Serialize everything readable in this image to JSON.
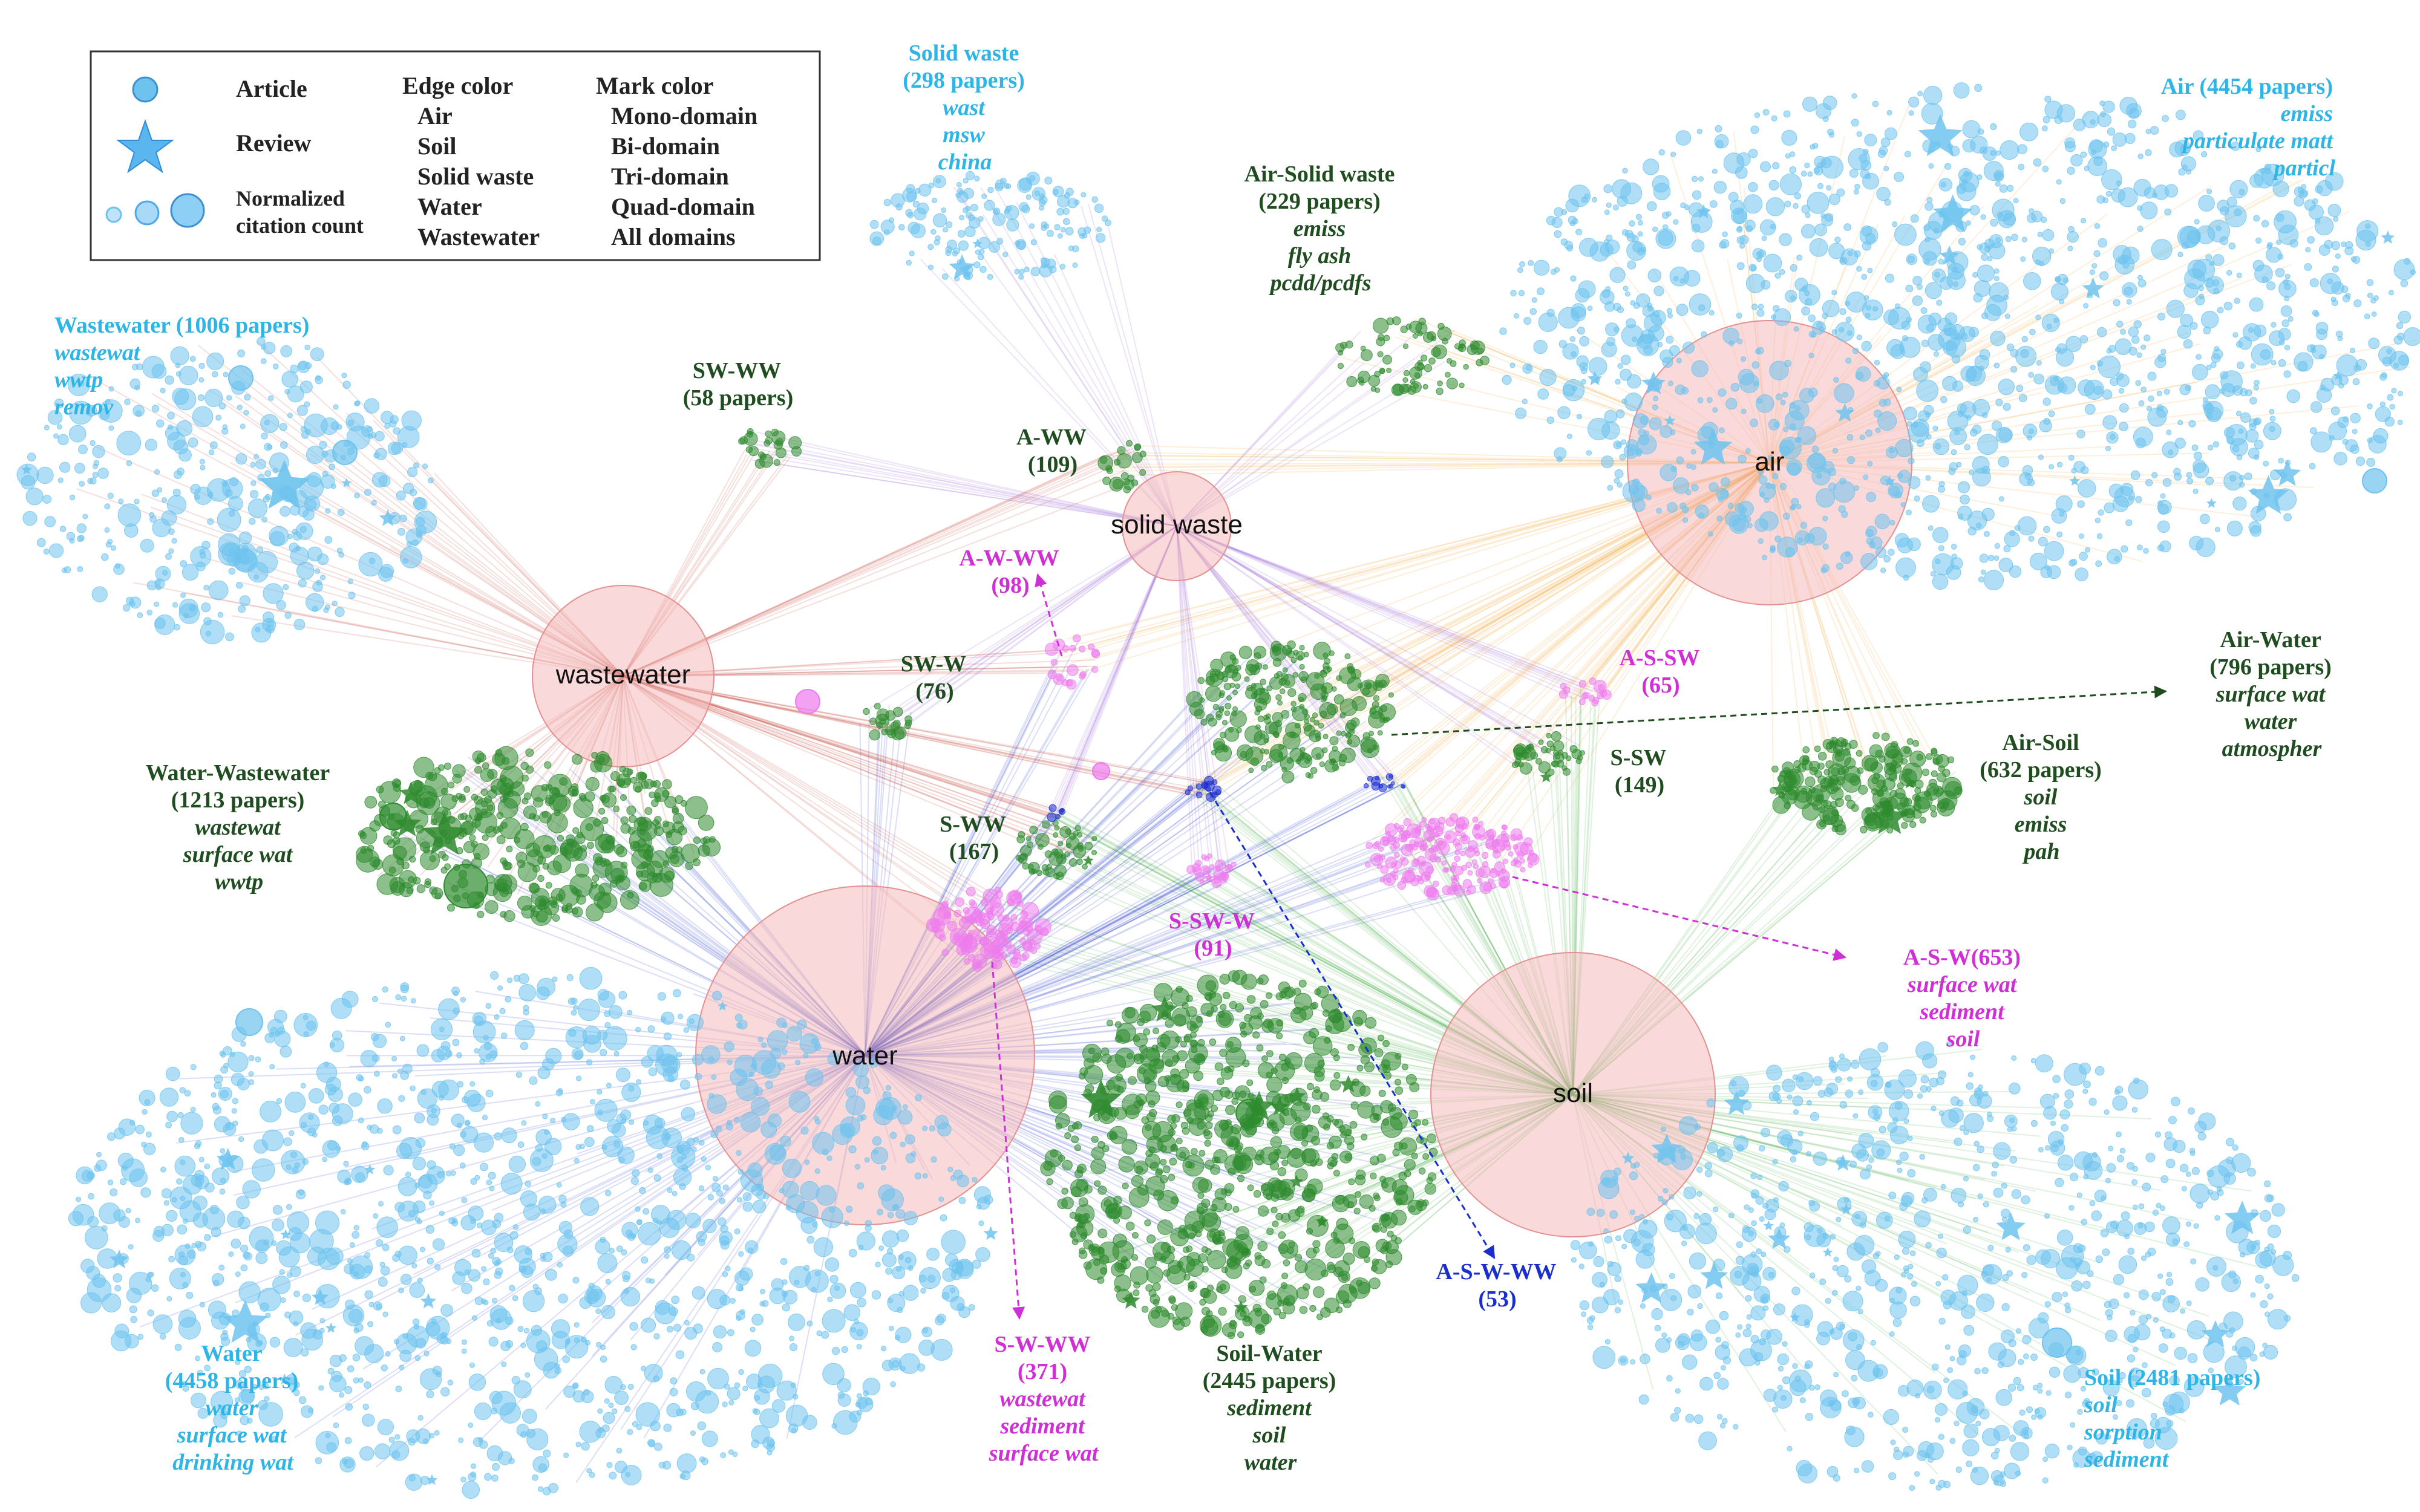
{
  "legend": {
    "shape_header_article": "Article",
    "shape_header_review": "Review",
    "size_label_line1": "Normalized",
    "size_label_line2": "citation count",
    "edge_header": "Edge color",
    "edge_items": [
      {
        "label": "Air",
        "color": "#F39A1E"
      },
      {
        "label": "Soil",
        "color": "#3BA53B"
      },
      {
        "label": "Solid waste",
        "color": "#8E55D1"
      },
      {
        "label": "Water",
        "color": "#2233CC"
      },
      {
        "label": "Wastewater",
        "color": "#C0392B"
      }
    ],
    "mark_header": "Mark color",
    "mark_items": [
      {
        "label": "Mono-domain",
        "color": "#4FA6E8"
      },
      {
        "label": "Bi-domain",
        "color": "#1E8F1E"
      },
      {
        "label": "Tri-domain",
        "color": "#D23BD8"
      },
      {
        "label": "Quad-domain",
        "color": "#1A1ABF"
      },
      {
        "label": "All domains",
        "color": "#333333"
      }
    ]
  },
  "hubs": {
    "air": "air",
    "solid_waste": "solid waste",
    "wastewater": "wastewater",
    "water": "water",
    "soil": "soil"
  },
  "colors": {
    "mono": "#6EC3EE",
    "mono_label": "#2EB5E6",
    "bi": "#2E8B2E",
    "bi_label": "#1F4D1F",
    "tri": "#EE7BEE",
    "tri_label": "#D12FD6",
    "quad": "#1A2ED0",
    "hub_fill": "#F4B9B9"
  },
  "clusters": {
    "solid_waste": {
      "title": [
        "Solid waste",
        "(298 papers)"
      ],
      "keywords": [
        "wast",
        "msw",
        "china"
      ]
    },
    "air": {
      "title": [
        "Air (4454 papers)"
      ],
      "keywords": [
        "emiss",
        "particulate matt",
        "particl"
      ]
    },
    "wastewater": {
      "title": [
        "Wastewater (1006 papers)"
      ],
      "keywords": [
        "wastewat",
        "wwtp",
        "remov"
      ]
    },
    "water": {
      "title": [
        "Water",
        "(4458 papers)"
      ],
      "keywords": [
        "water",
        "surface wat",
        "drinking wat"
      ]
    },
    "soil": {
      "title": [
        "Soil (2481 papers)"
      ],
      "keywords": [
        "soil",
        "sorption",
        "sediment"
      ]
    },
    "air_solid_waste": {
      "title": [
        "Air-Solid waste",
        "(229 papers)"
      ],
      "keywords": [
        "emiss",
        "fly ash",
        "pcdd/pcdfs"
      ]
    },
    "sw_ww": {
      "title": [
        "SW-WW",
        "(58 papers)"
      ],
      "keywords": []
    },
    "a_ww": {
      "title": [
        "A-WW",
        "(109)"
      ],
      "keywords": []
    },
    "a_w_ww": {
      "title": [
        "A-W-WW",
        "(98)"
      ],
      "keywords": []
    },
    "sw_w": {
      "title": [
        "SW-W",
        "(76)"
      ],
      "keywords": []
    },
    "a_s_sw": {
      "title": [
        "A-S-SW",
        "(65)"
      ],
      "keywords": []
    },
    "air_water": {
      "title": [
        "Air-Water",
        "(796 papers)"
      ],
      "keywords": [
        "surface wat",
        "water",
        "atmospher"
      ]
    },
    "water_wastewater": {
      "title": [
        "Water-Wastewater",
        "(1213 papers)"
      ],
      "keywords": [
        "wastewat",
        "surface wat",
        "wwtp"
      ]
    },
    "s_sw": {
      "title": [
        "S-SW",
        "(149)"
      ],
      "keywords": []
    },
    "air_soil": {
      "title": [
        "Air-Soil",
        "(632 papers)"
      ],
      "keywords": [
        "soil",
        "emiss",
        "pah"
      ]
    },
    "s_ww": {
      "title": [
        "S-WW",
        "(167)"
      ],
      "keywords": []
    },
    "s_sw_w": {
      "title": [
        "S-SW-W",
        "(91)"
      ],
      "keywords": []
    },
    "a_s_w": {
      "title": [
        "A-S-W(653)"
      ],
      "keywords": [
        "surface wat",
        "sediment",
        "soil"
      ]
    },
    "soil_water": {
      "title": [
        "Soil-Water",
        "(2445 papers)"
      ],
      "keywords": [
        "sediment",
        "soil",
        "water"
      ]
    },
    "a_s_w_ww": {
      "title": [
        "A-S-W-WW",
        "(53)"
      ],
      "keywords": []
    },
    "s_w_ww": {
      "title": [
        "S-W-WW",
        "(371)"
      ],
      "keywords": [
        "wastewat",
        "sediment",
        "surface wat"
      ]
    }
  }
}
